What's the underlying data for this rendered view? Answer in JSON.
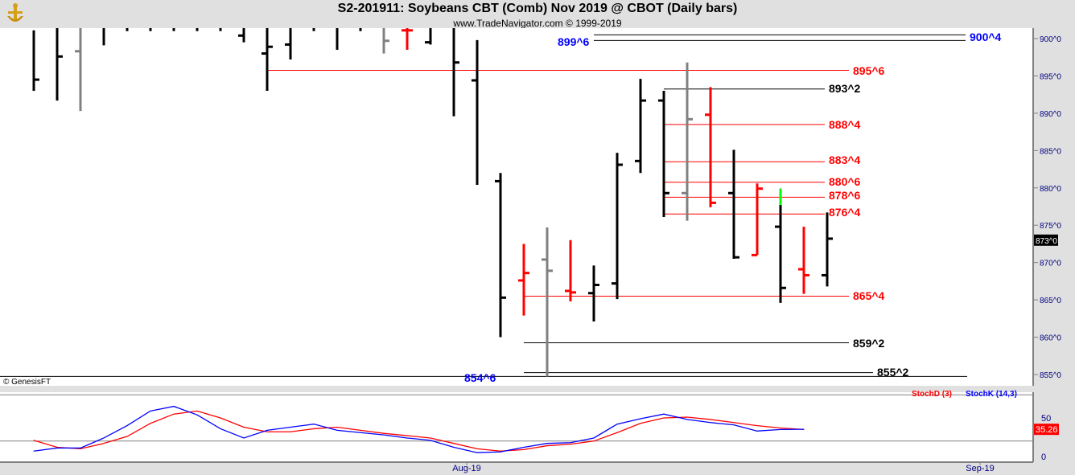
{
  "header": {
    "title": "S2-201911:  Soybeans CBT (Comb) Nov 2019 @ CBOT  (Daily bars)",
    "subtitle": "www.TradeNavigator.com © 1999-2019"
  },
  "watermark": "© GenesisFT",
  "chart_data": [
    {
      "type": "ohlc",
      "name": "price",
      "ylim": [
        854,
        901.4
      ],
      "yticks": [
        {
          "v": 855,
          "label": "855^0"
        },
        {
          "v": 860,
          "label": "860^0"
        },
        {
          "v": 865,
          "label": "865^0"
        },
        {
          "v": 870,
          "label": "870^0"
        },
        {
          "v": 875,
          "label": "875^0"
        },
        {
          "v": 880,
          "label": "880^0"
        },
        {
          "v": 885,
          "label": "885^0"
        },
        {
          "v": 890,
          "label": "890^0"
        },
        {
          "v": 895,
          "label": "895^0"
        },
        {
          "v": 900,
          "label": "900^0"
        }
      ],
      "last_price": {
        "value": 873,
        "label": "873^0"
      },
      "colors": {
        "black": "#000000",
        "red": "#ff0000",
        "gray": "#808080",
        "green": "#00ff00",
        "blue": "#0000ff"
      },
      "bars": [
        {
          "h": 901.1,
          "l": 893.0,
          "o": null,
          "c": 894.5,
          "color": "black"
        },
        {
          "h": 901.4,
          "l": 891.7,
          "o": null,
          "c": 897.6,
          "color": "black"
        },
        {
          "h": 901.4,
          "l": 890.3,
          "o": 898.3,
          "c": null,
          "color": "gray"
        },
        {
          "h": 901.4,
          "l": 899.1,
          "o": null,
          "c": null,
          "color": "black"
        },
        {
          "h": 901.4,
          "l": 901.0,
          "o": null,
          "c": null,
          "color": "black"
        },
        {
          "h": 901.4,
          "l": 901.0,
          "o": null,
          "c": null,
          "color": "black"
        },
        {
          "h": 901.4,
          "l": 901.0,
          "o": null,
          "c": null,
          "color": "black"
        },
        {
          "h": 901.4,
          "l": 901.0,
          "o": null,
          "c": null,
          "color": "black"
        },
        {
          "h": 901.4,
          "l": 901.0,
          "o": null,
          "c": null,
          "color": "black"
        },
        {
          "h": 901.4,
          "l": 899.5,
          "o": 900.4,
          "c": null,
          "color": "black"
        },
        {
          "h": 901.4,
          "l": 893.0,
          "o": 898.0,
          "c": 898.9,
          "color": "black"
        },
        {
          "h": 901.4,
          "l": 897.2,
          "o": 899.2,
          "c": null,
          "color": "black"
        },
        {
          "h": 901.4,
          "l": 901.0,
          "o": null,
          "c": null,
          "color": "black"
        },
        {
          "h": 901.4,
          "l": 898.5,
          "o": null,
          "c": null,
          "color": "black"
        },
        {
          "h": 901.4,
          "l": 901.0,
          "o": null,
          "c": null,
          "color": "black"
        },
        {
          "h": 901.4,
          "l": 898.0,
          "o": null,
          "c": 899.7,
          "color": "gray"
        },
        {
          "h": 901.4,
          "l": 898.5,
          "o": 901.1,
          "c": 901.1,
          "color": "red"
        },
        {
          "h": 901.4,
          "l": 899.2,
          "o": 899.5,
          "c": null,
          "color": "black"
        },
        {
          "h": 901.4,
          "l": 889.6,
          "o": null,
          "c": 896.8,
          "color": "black"
        },
        {
          "h": 899.8,
          "l": 880.4,
          "o": 894.4,
          "c": null,
          "color": "black"
        },
        {
          "h": 882.0,
          "l": 860.0,
          "o": 880.9,
          "c": 865.3,
          "color": "black"
        },
        {
          "h": 872.5,
          "l": 862.9,
          "o": 867.6,
          "c": 868.6,
          "color": "red"
        },
        {
          "h": 874.7,
          "l": 854.75,
          "o": 870.4,
          "c": 868.9,
          "color": "gray"
        },
        {
          "h": 873.0,
          "l": 864.8,
          "o": 866.2,
          "c": 866.0,
          "color": "red"
        },
        {
          "h": 869.6,
          "l": 862.1,
          "o": 865.9,
          "c": 867.0,
          "color": "black"
        },
        {
          "h": 884.7,
          "l": 865.1,
          "o": 867.2,
          "c": 883.1,
          "color": "black"
        },
        {
          "h": 894.6,
          "l": 882.0,
          "o": 883.6,
          "c": 891.7,
          "color": "black"
        },
        {
          "h": 893.0,
          "l": 876.1,
          "o": 891.7,
          "c": 879.3,
          "color": "black"
        },
        {
          "h": 896.8,
          "l": 875.6,
          "o": 879.3,
          "c": 889.2,
          "color": "gray"
        },
        {
          "h": 893.5,
          "l": 877.4,
          "o": 889.8,
          "c": 878.0,
          "color": "red"
        },
        {
          "h": 885.1,
          "l": 870.5,
          "o": 879.3,
          "c": 870.7,
          "color": "black"
        },
        {
          "h": 880.6,
          "l": 871.0,
          "o": 871.0,
          "c": 879.9,
          "color": "red"
        },
        {
          "h": 879.9,
          "l": 864.6,
          "o": 874.8,
          "c": 866.6,
          "color": "black",
          "top_color": "green",
          "top_to": 877.7
        },
        {
          "h": 874.8,
          "l": 865.8,
          "o": 869.1,
          "c": 868.3,
          "color": "red"
        },
        {
          "h": 876.7,
          "l": 866.8,
          "o": 868.3,
          "c": 873.2,
          "color": "black"
        }
      ],
      "levels": [
        {
          "label": "900^4",
          "v": 900.5,
          "color": "black",
          "label_color": "blue"
        },
        {
          "label": "899^6",
          "v": 899.75,
          "color": "black",
          "label_color": "blue"
        },
        {
          "label": "895^6",
          "v": 895.75,
          "color": "red",
          "label_color": "red"
        },
        {
          "label": "893^2",
          "v": 893.25,
          "color": "black",
          "label_color": "black"
        },
        {
          "label": "888^4",
          "v": 888.5,
          "color": "red",
          "label_color": "red"
        },
        {
          "label": "883^4",
          "v": 883.5,
          "color": "red",
          "label_color": "red"
        },
        {
          "label": "880^6",
          "v": 880.75,
          "color": "red",
          "label_color": "red"
        },
        {
          "label": "878^6",
          "v": 878.75,
          "color": "red",
          "label_color": "red"
        },
        {
          "label": "876^4",
          "v": 876.5,
          "color": "red",
          "label_color": "red"
        },
        {
          "label": "865^4",
          "v": 865.5,
          "color": "red",
          "label_color": "red"
        },
        {
          "label": "859^2",
          "v": 859.25,
          "color": "black",
          "label_color": "black"
        },
        {
          "label": "855^2",
          "v": 855.25,
          "color": "black",
          "label_color": "black"
        },
        {
          "label": "854^6",
          "v": 854.75,
          "color": "black",
          "label_color": "blue"
        }
      ]
    },
    {
      "type": "line",
      "name": "stochastic",
      "ylim": [
        0,
        100
      ],
      "yticks": [
        {
          "v": 0,
          "label": "0"
        },
        {
          "v": 50,
          "label": "50"
        }
      ],
      "reference_lines": [
        20,
        80
      ],
      "last_value": {
        "value": 35.26,
        "label": "35.26"
      },
      "xticks": [
        {
          "bar": 19,
          "label": "Aug-19"
        },
        {
          "bar": 41,
          "label": "Sep-19"
        }
      ],
      "series": [
        {
          "name": "StochD (3)",
          "color": "#ff0000",
          "values": [
            21,
            12,
            10,
            17,
            26,
            43,
            55,
            59,
            50,
            38,
            32,
            32,
            36,
            38,
            34,
            30,
            27,
            24,
            17,
            10,
            7,
            9,
            14,
            16,
            20,
            31,
            43,
            50,
            51,
            48,
            44,
            40,
            37,
            35
          ]
        },
        {
          "name": "StochK (14,3)",
          "color": "#0000ff",
          "values": [
            7,
            11,
            11,
            24,
            40,
            59,
            65,
            54,
            36,
            24,
            34,
            38,
            42,
            34,
            31,
            28,
            24,
            21,
            12,
            5,
            6,
            12,
            17,
            18,
            24,
            42,
            49,
            55,
            48,
            44,
            41,
            33,
            35,
            35.26
          ]
        }
      ]
    }
  ]
}
